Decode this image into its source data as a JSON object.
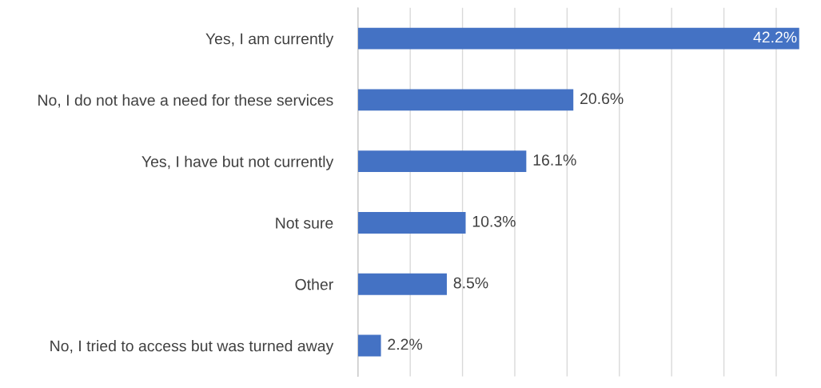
{
  "chart_data": {
    "type": "bar",
    "orientation": "horizontal",
    "categories": [
      "Yes, I am currently",
      "No, I do not have a need for these services",
      "Yes, I have but not currently",
      "Not sure",
      "Other",
      "No, I tried to access but was turned away"
    ],
    "values": [
      42.2,
      20.6,
      16.1,
      10.3,
      8.5,
      2.2
    ],
    "value_labels": [
      "42.2%",
      "20.6%",
      "16.1%",
      "10.3%",
      "8.5%",
      "2.2%"
    ],
    "color": "#4472c4",
    "xlim": [
      0,
      42.4
    ],
    "xticks": [
      {
        "value": 0,
        "label": null
      },
      {
        "value": 5,
        "label": null
      },
      {
        "value": 10,
        "label": null
      },
      {
        "value": 15,
        "label": null
      },
      {
        "value": 20,
        "label": null
      },
      {
        "value": 25,
        "label": null
      },
      {
        "value": 30,
        "label": null
      },
      {
        "value": 35,
        "label": null
      },
      {
        "value": 40,
        "label": null
      }
    ],
    "grid": "x",
    "tick_labels": "y"
  }
}
